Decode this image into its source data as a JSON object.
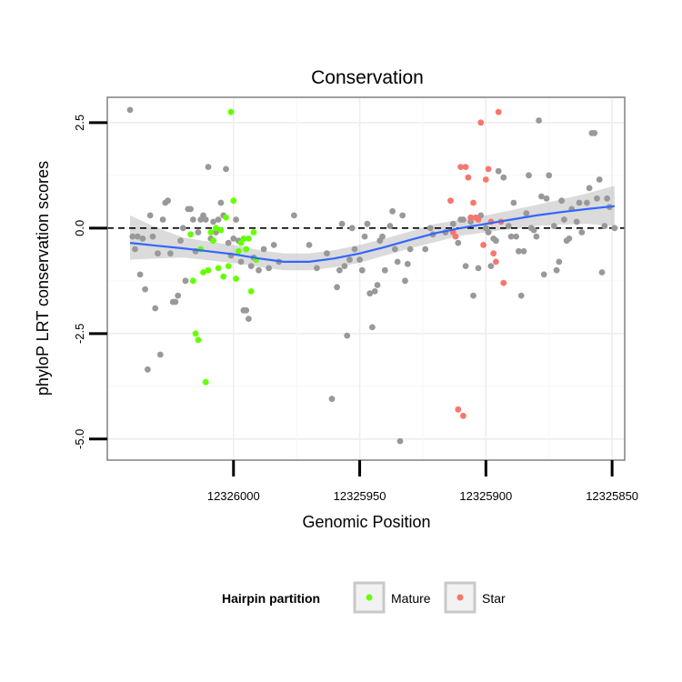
{
  "chart_data": {
    "type": "scatter",
    "title": "Conservation",
    "xlabel": "Genomic Position",
    "ylabel": "phyloP LRT conservation scores",
    "x_reversed": true,
    "xlim": [
      12326050,
      12325845
    ],
    "ylim": [
      -5.5,
      3.1
    ],
    "x_ticks": [
      12326000,
      12325950,
      12325900,
      12325850
    ],
    "x_tick_labels": [
      "12326000",
      "12325950",
      "12325900",
      "12325850"
    ],
    "y_ticks": [
      -5.0,
      -2.5,
      0.0,
      2.5
    ],
    "y_tick_labels": [
      "-5.0",
      "-2.5",
      "0.0",
      "2.5"
    ],
    "grid": true,
    "reference_line": {
      "y": 0,
      "style": "dashed"
    },
    "smooth": {
      "color": "#3366ff",
      "band_color": "#bdbdbd",
      "x": [
        12326041,
        12326030,
        12326020,
        12326010,
        12326000,
        12325990,
        12325980,
        12325970,
        12325960,
        12325950,
        12325940,
        12325930,
        12325920,
        12325910,
        12325900,
        12325890,
        12325880,
        12325870,
        12325860,
        12325849
      ],
      "y": [
        -0.35,
        -0.42,
        -0.48,
        -0.55,
        -0.62,
        -0.72,
        -0.8,
        -0.8,
        -0.72,
        -0.6,
        -0.45,
        -0.28,
        -0.12,
        0.0,
        0.1,
        0.2,
        0.3,
        0.38,
        0.45,
        0.52
      ],
      "lower": [
        -0.75,
        -0.72,
        -0.7,
        -0.76,
        -0.83,
        -0.92,
        -1.0,
        -1.0,
        -0.93,
        -0.82,
        -0.65,
        -0.48,
        -0.33,
        -0.18,
        -0.1,
        -0.02,
        0.05,
        0.08,
        0.1,
        0.05
      ],
      "upper": [
        0.3,
        0.0,
        -0.22,
        -0.32,
        -0.4,
        -0.52,
        -0.6,
        -0.6,
        -0.52,
        -0.4,
        -0.25,
        -0.08,
        0.1,
        0.2,
        0.3,
        0.42,
        0.55,
        0.68,
        0.82,
        1.0
      ]
    },
    "legend": {
      "title": "Hairpin partition",
      "position": "bottom",
      "entries": [
        {
          "name": "Mature",
          "color": "#66ff00"
        },
        {
          "name": "Star",
          "color": "#f8766d"
        }
      ]
    },
    "series": [
      {
        "color": "#999999",
        "points": [
          [
            12326041,
            2.8
          ],
          [
            12326040,
            -0.2
          ],
          [
            12326039,
            -0.5
          ],
          [
            12326038,
            -0.2
          ],
          [
            12326037,
            -1.1
          ],
          [
            12326036,
            -0.25
          ],
          [
            12326035,
            -1.45
          ],
          [
            12326034,
            -3.35
          ],
          [
            12326033,
            0.3
          ],
          [
            12326032,
            -0.2
          ],
          [
            12326031,
            -1.9
          ],
          [
            12326030,
            -0.6
          ],
          [
            12326029,
            -3.0
          ],
          [
            12326028,
            0.2
          ],
          [
            12326027,
            0.6
          ],
          [
            12326026,
            0.65
          ],
          [
            12326025,
            -0.6
          ],
          [
            12326024,
            -1.75
          ],
          [
            12326023,
            -1.75
          ],
          [
            12326022,
            -1.6
          ],
          [
            12326021,
            -0.3
          ],
          [
            12326020,
            0.0
          ],
          [
            12326019,
            -1.25
          ],
          [
            12326018,
            0.45
          ],
          [
            12326017,
            0.45
          ],
          [
            12326016,
            0.2
          ],
          [
            12326015,
            -0.55
          ],
          [
            12326014,
            -0.1
          ],
          [
            12326013,
            0.2
          ],
          [
            12326012,
            0.3
          ],
          [
            12326011,
            0.2
          ],
          [
            12326010,
            1.45
          ],
          [
            12326009,
            -0.25
          ],
          [
            12326008,
            0.15
          ],
          [
            12326007,
            -0.1
          ],
          [
            12326006,
            0.2
          ],
          [
            12326005,
            0.6
          ],
          [
            12326004,
            0.3
          ],
          [
            12326003,
            1.4
          ],
          [
            12326002,
            -0.35
          ],
          [
            12326001,
            -0.65
          ],
          [
            12326000,
            -0.25
          ],
          [
            12325999,
            0.2
          ],
          [
            12325998,
            -0.3
          ],
          [
            12325997,
            -0.8
          ],
          [
            12325996,
            -1.95
          ],
          [
            12325995,
            -1.95
          ],
          [
            12325994,
            -2.15
          ],
          [
            12325993,
            -0.9
          ],
          [
            12325992,
            -0.7
          ],
          [
            12325990,
            -1.0
          ],
          [
            12325988,
            -0.5
          ],
          [
            12325986,
            -0.95
          ],
          [
            12325984,
            -0.4
          ],
          [
            12325982,
            -0.8
          ],
          [
            12325976,
            0.3
          ],
          [
            12325970,
            -0.4
          ],
          [
            12325967,
            -0.95
          ],
          [
            12325963,
            -0.6
          ],
          [
            12325961,
            -4.05
          ],
          [
            12325959,
            -1.4
          ],
          [
            12325958,
            -1.0
          ],
          [
            12325957,
            0.1
          ],
          [
            12325956,
            -0.9
          ],
          [
            12325955,
            -2.55
          ],
          [
            12325954,
            -0.75
          ],
          [
            12325953,
            0.0
          ],
          [
            12325952,
            -0.5
          ],
          [
            12325950,
            -0.75
          ],
          [
            12325949,
            -1.0
          ],
          [
            12325948,
            -0.2
          ],
          [
            12325947,
            0.1
          ],
          [
            12325946,
            -1.55
          ],
          [
            12325945,
            -2.35
          ],
          [
            12325944,
            -1.5
          ],
          [
            12325943,
            -1.35
          ],
          [
            12325942,
            -0.3
          ],
          [
            12325941,
            -0.2
          ],
          [
            12325940,
            -1.0
          ],
          [
            12325938,
            0.05
          ],
          [
            12325937,
            0.4
          ],
          [
            12325936,
            -0.5
          ],
          [
            12325935,
            -0.8
          ],
          [
            12325934,
            -5.05
          ],
          [
            12325933,
            0.3
          ],
          [
            12325932,
            -1.25
          ],
          [
            12325931,
            -0.85
          ],
          [
            12325930,
            -0.5
          ],
          [
            12325924,
            -0.5
          ],
          [
            12325922,
            0.0
          ],
          [
            12325921,
            -0.15
          ],
          [
            12325916,
            -0.1
          ],
          [
            12325913,
            0.1
          ],
          [
            12325911,
            -0.35
          ],
          [
            12325910,
            0.2
          ],
          [
            12325909,
            0.2
          ],
          [
            12325908,
            -0.9
          ],
          [
            12325906,
            0.15
          ],
          [
            12325905,
            -1.6
          ],
          [
            12325903,
            -0.95
          ],
          [
            12325902,
            0.3
          ],
          [
            12325900,
            0.0
          ],
          [
            12325899,
            -0.1
          ],
          [
            12325898,
            -0.9
          ],
          [
            12325897,
            -0.25
          ],
          [
            12325896,
            -0.3
          ],
          [
            12325895,
            1.35
          ],
          [
            12325893,
            1.2
          ],
          [
            12325891,
            0.05
          ],
          [
            12325890,
            -0.2
          ],
          [
            12325889,
            0.6
          ],
          [
            12325888,
            -0.2
          ],
          [
            12325887,
            -0.55
          ],
          [
            12325886,
            -1.6
          ],
          [
            12325885,
            -0.55
          ],
          [
            12325884,
            0.35
          ],
          [
            12325883,
            1.25
          ],
          [
            12325882,
            0.0
          ],
          [
            12325881,
            -0.05
          ],
          [
            12325880,
            -0.2
          ],
          [
            12325879,
            2.55
          ],
          [
            12325878,
            0.75
          ],
          [
            12325877,
            -1.1
          ],
          [
            12325876,
            0.7
          ],
          [
            12325875,
            1.25
          ],
          [
            12325873,
            0.05
          ],
          [
            12325872,
            -1.0
          ],
          [
            12325871,
            -0.8
          ],
          [
            12325870,
            0.65
          ],
          [
            12325869,
            0.2
          ],
          [
            12325868,
            -0.3
          ],
          [
            12325867,
            -0.25
          ],
          [
            12325866,
            0.45
          ],
          [
            12325864,
            0.15
          ],
          [
            12325863,
            0.6
          ],
          [
            12325862,
            -0.1
          ],
          [
            12325860,
            0.6
          ],
          [
            12325859,
            0.95
          ],
          [
            12325858,
            2.25
          ],
          [
            12325857,
            2.25
          ],
          [
            12325856,
            0.7
          ],
          [
            12325855,
            1.15
          ],
          [
            12325854,
            -1.05
          ],
          [
            12325853,
            0.05
          ],
          [
            12325852,
            0.7
          ],
          [
            12325851,
            0.5
          ],
          [
            12325849,
            0.0
          ]
        ]
      },
      {
        "name": "Mature",
        "color": "#66ff00",
        "points": [
          [
            12326017,
            -0.15
          ],
          [
            12326016,
            -1.25
          ],
          [
            12326015,
            -2.5
          ],
          [
            12326014,
            -2.65
          ],
          [
            12326013,
            -0.5
          ],
          [
            12326012,
            -1.05
          ],
          [
            12326011,
            -3.65
          ],
          [
            12326010,
            -1.0
          ],
          [
            12326009,
            -0.1
          ],
          [
            12326008,
            -0.3
          ],
          [
            12326007,
            0.0
          ],
          [
            12326006,
            -0.95
          ],
          [
            12326005,
            -0.05
          ],
          [
            12326004,
            -1.15
          ],
          [
            12326003,
            0.25
          ],
          [
            12326002,
            -0.9
          ],
          [
            12326001,
            2.75
          ],
          [
            12326000,
            0.65
          ],
          [
            12325999,
            -1.2
          ],
          [
            12325998,
            -0.55
          ],
          [
            12325997,
            -0.35
          ],
          [
            12325996,
            -0.25
          ],
          [
            12325995,
            -0.5
          ],
          [
            12325994,
            -0.25
          ],
          [
            12325993,
            -1.5
          ],
          [
            12325992,
            -0.1
          ],
          [
            12325991,
            -0.75
          ]
        ]
      },
      {
        "name": "Star",
        "color": "#f8766d",
        "points": [
          [
            12325914,
            0.65
          ],
          [
            12325913,
            -0.1
          ],
          [
            12325912,
            -0.2
          ],
          [
            12325911,
            -4.3
          ],
          [
            12325910,
            1.45
          ],
          [
            12325909,
            -4.45
          ],
          [
            12325908,
            1.45
          ],
          [
            12325907,
            1.2
          ],
          [
            12325906,
            0.25
          ],
          [
            12325905,
            0.6
          ],
          [
            12325904,
            0.25
          ],
          [
            12325903,
            0.2
          ],
          [
            12325902,
            2.5
          ],
          [
            12325901,
            -0.4
          ],
          [
            12325900,
            1.15
          ],
          [
            12325899,
            1.4
          ],
          [
            12325898,
            0.15
          ],
          [
            12325897,
            -0.6
          ],
          [
            12325896,
            -0.8
          ],
          [
            12325895,
            2.75
          ],
          [
            12325894,
            0.15
          ],
          [
            12325893,
            -1.3
          ]
        ]
      }
    ]
  }
}
